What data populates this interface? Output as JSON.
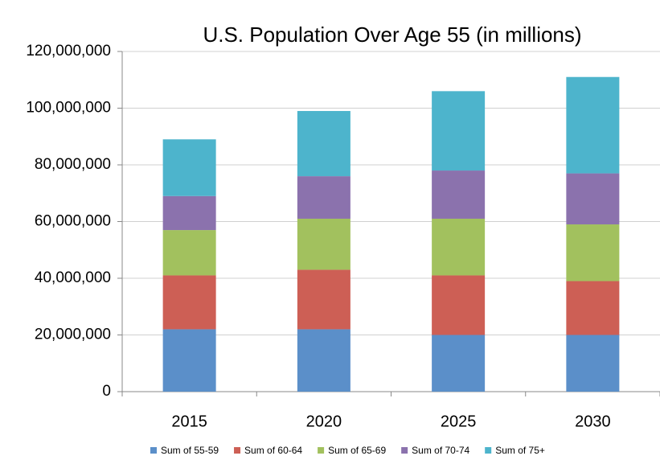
{
  "chart_data": {
    "type": "stacked-bar",
    "title": "U.S. Population Over Age 55 (in millions)",
    "categories": [
      "2015",
      "2020",
      "2025",
      "2030"
    ],
    "series": [
      {
        "name": "Sum of 55-59",
        "color": "#5b8fc9",
        "values": [
          22000000,
          22000000,
          20000000,
          20000000
        ]
      },
      {
        "name": "Sum of 60-64",
        "color": "#cd5f55",
        "values": [
          19000000,
          21000000,
          21000000,
          19000000
        ]
      },
      {
        "name": "Sum of 65-69",
        "color": "#a2c15e",
        "values": [
          16000000,
          18000000,
          20000000,
          20000000
        ]
      },
      {
        "name": "Sum of 70-74",
        "color": "#8b72ad",
        "values": [
          12000000,
          15000000,
          17000000,
          18000000
        ]
      },
      {
        "name": "Sum of 75+",
        "color": "#4db4cc",
        "values": [
          20000000,
          23000000,
          28000000,
          34000000
        ]
      }
    ],
    "ylim": [
      0,
      120000000
    ],
    "yticks": [
      0,
      {
        "value": 20000000,
        "label": "20,000,000"
      },
      {
        "value": 40000000,
        "label": "40,000,000"
      },
      {
        "value": 60000000,
        "label": "60,000,000"
      },
      {
        "value": 80000000,
        "label": "80,000,000"
      },
      {
        "value": 100000000,
        "label": "100,000,000"
      },
      {
        "value": 120000000,
        "label": "120,000,000"
      }
    ],
    "grid": true,
    "legend": "bottom"
  }
}
